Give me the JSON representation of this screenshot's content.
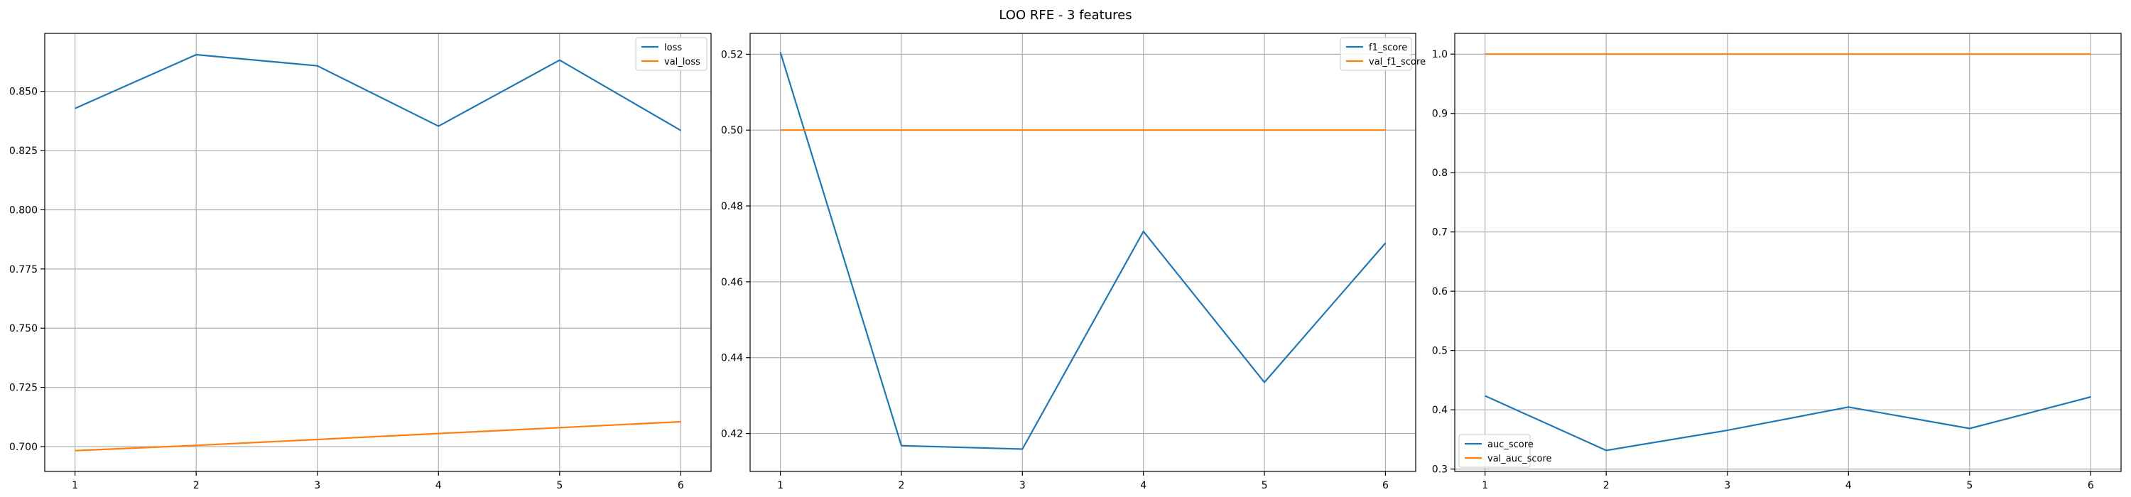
{
  "figure_title": "LOO RFE - 3 features",
  "colors": {
    "series1": "#1f77b4",
    "series2": "#ff7f0e",
    "grid": "#b0b0b0"
  },
  "chart_data": [
    {
      "type": "line",
      "title": "",
      "xlabel": "",
      "ylabel": "",
      "x": [
        1,
        2,
        3,
        4,
        5,
        6
      ],
      "xlim": [
        0.75,
        6.25
      ],
      "ylim": [
        0.6895,
        0.8745
      ],
      "xticks": [
        1,
        2,
        3,
        4,
        5,
        6
      ],
      "yticks": [
        0.7,
        0.725,
        0.75,
        0.775,
        0.8,
        0.825,
        0.85
      ],
      "ytick_labels": [
        "0.700",
        "0.725",
        "0.750",
        "0.775",
        "0.800",
        "0.825",
        "0.850"
      ],
      "grid": true,
      "legend_position": "top-right",
      "series": [
        {
          "name": "loss",
          "color": "#1f77b4",
          "values": [
            0.8428,
            0.8655,
            0.8608,
            0.8353,
            0.8632,
            0.8335
          ]
        },
        {
          "name": "val_loss",
          "color": "#ff7f0e",
          "values": [
            0.6983,
            0.7005,
            0.703,
            0.7055,
            0.708,
            0.7105
          ]
        }
      ]
    },
    {
      "type": "line",
      "title": "",
      "xlabel": "",
      "ylabel": "",
      "x": [
        1,
        2,
        3,
        4,
        5,
        6
      ],
      "xlim": [
        0.75,
        6.25
      ],
      "ylim": [
        0.41,
        0.5255
      ],
      "xticks": [
        1,
        2,
        3,
        4,
        5,
        6
      ],
      "yticks": [
        0.42,
        0.44,
        0.46,
        0.48,
        0.5,
        0.52
      ],
      "ytick_labels": [
        "0.42",
        "0.44",
        "0.46",
        "0.48",
        "0.50",
        "0.52"
      ],
      "grid": true,
      "legend_position": "top-right",
      "series": [
        {
          "name": "f1_score",
          "color": "#1f77b4",
          "values": [
            0.5205,
            0.4168,
            0.4159,
            0.4733,
            0.4335,
            0.4702
          ]
        },
        {
          "name": "val_f1_score",
          "color": "#ff7f0e",
          "values": [
            0.5,
            0.5,
            0.5,
            0.5,
            0.5,
            0.5
          ]
        }
      ]
    },
    {
      "type": "line",
      "title": "",
      "xlabel": "",
      "ylabel": "",
      "x": [
        1,
        2,
        3,
        4,
        5,
        6
      ],
      "xlim": [
        0.75,
        6.25
      ],
      "ylim": [
        0.296,
        1.035
      ],
      "xticks": [
        1,
        2,
        3,
        4,
        5,
        6
      ],
      "yticks": [
        0.3,
        0.4,
        0.5,
        0.6,
        0.7,
        0.8,
        0.9,
        1.0
      ],
      "ytick_labels": [
        "0.3",
        "0.4",
        "0.5",
        "0.6",
        "0.7",
        "0.8",
        "0.9",
        "1.0"
      ],
      "grid": true,
      "legend_position": "bottom-left",
      "series": [
        {
          "name": "auc_score",
          "color": "#1f77b4",
          "values": [
            0.4236,
            0.3314,
            0.3653,
            0.4046,
            0.3685,
            0.4218
          ]
        },
        {
          "name": "val_auc_score",
          "color": "#ff7f0e",
          "values": [
            1.0,
            1.0,
            1.0,
            1.0,
            1.0,
            1.0
          ]
        }
      ]
    }
  ]
}
